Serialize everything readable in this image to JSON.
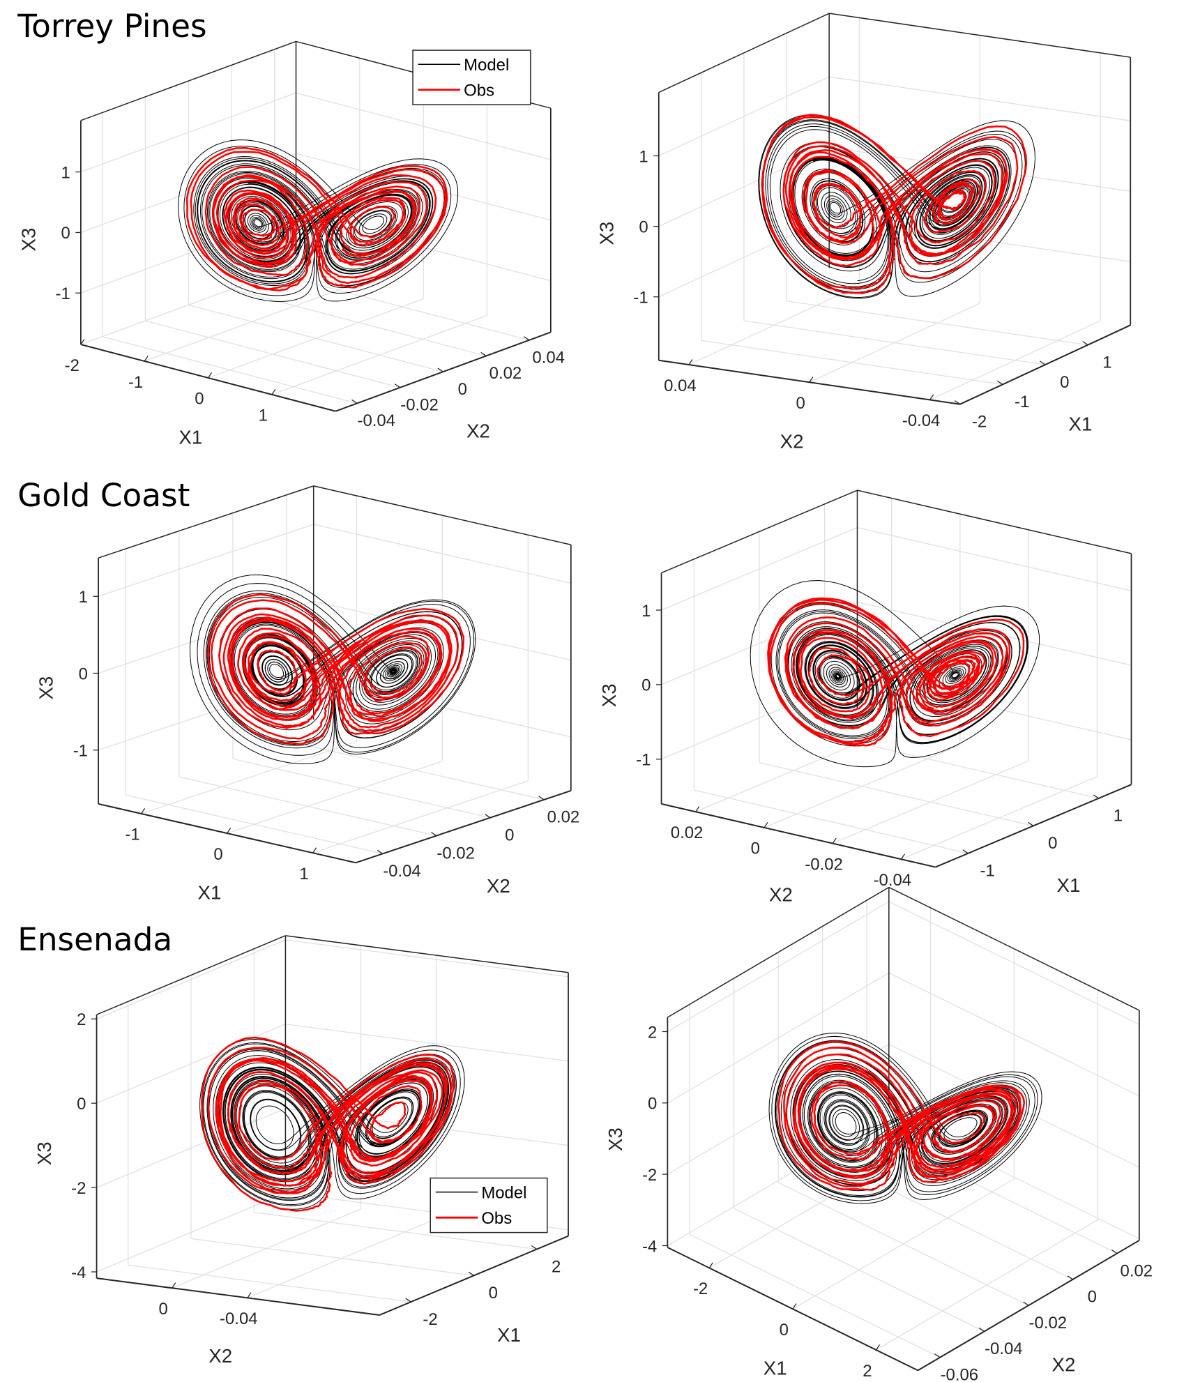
{
  "figure": {
    "sections": [
      {
        "title": "Torrey Pines"
      },
      {
        "title": "Gold Coast"
      },
      {
        "title": "Ensenada"
      }
    ],
    "legend": {
      "model_label": "Model",
      "obs_label": "Obs"
    },
    "colors": {
      "model": "#000000",
      "obs": "#ff0000",
      "grid": "#e0e0e0",
      "axis": "#262626"
    }
  },
  "chart_data": [
    {
      "type": "line",
      "projection": "3d",
      "section": "Torrey Pines",
      "legend": "top-right",
      "grid": true,
      "floor_axis_1": {
        "label": "X1",
        "range": [
          -2,
          2
        ],
        "ticks": [
          -2,
          -1,
          0,
          1
        ],
        "tick_labels": [
          "-2",
          "-1",
          "0",
          "1"
        ]
      },
      "floor_axis_2": {
        "label": "X2",
        "range": [
          -0.05,
          0.05
        ],
        "ticks": [
          -0.04,
          -0.02,
          0,
          0.02,
          0.04
        ],
        "tick_labels": [
          "-0.04",
          "-0.02",
          "0",
          "0.02",
          "0.04"
        ]
      },
      "zaxis": {
        "label": "X3",
        "range": [
          -1.85,
          1.85
        ],
        "ticks": [
          -1,
          0,
          1
        ],
        "tick_labels": [
          "-1",
          "0",
          "1"
        ]
      },
      "series": [
        {
          "name": "Model",
          "color": "#000000"
        },
        {
          "name": "Obs",
          "color": "#ff0000"
        }
      ]
    },
    {
      "type": "line",
      "projection": "3d",
      "section": "Torrey Pines",
      "grid": true,
      "floor_axis_1": {
        "label": "X2",
        "range": [
          0.05,
          -0.05
        ],
        "ticks": [
          0.04,
          0,
          -0.04
        ],
        "tick_labels": [
          "0.04",
          "0",
          "-0.04"
        ]
      },
      "floor_axis_2": {
        "label": "X1",
        "range": [
          -2,
          2
        ],
        "ticks": [
          -2,
          -1,
          0,
          1
        ],
        "tick_labels": [
          "-2",
          "-1",
          "0",
          "1"
        ]
      },
      "zaxis": {
        "label": "X3",
        "range": [
          -1.9,
          1.9
        ],
        "ticks": [
          -1,
          0,
          1
        ],
        "tick_labels": [
          "-1",
          "0",
          "1"
        ]
      },
      "series": [
        {
          "name": "Model",
          "color": "#000000"
        },
        {
          "name": "Obs",
          "color": "#ff0000"
        }
      ]
    },
    {
      "type": "line",
      "projection": "3d",
      "section": "Gold Coast",
      "grid": true,
      "floor_axis_1": {
        "label": "X1",
        "range": [
          -1.5,
          1.5
        ],
        "ticks": [
          -1,
          0,
          1
        ],
        "tick_labels": [
          "-1",
          "0",
          "1"
        ]
      },
      "floor_axis_2": {
        "label": "X2",
        "range": [
          -0.05,
          0.03
        ],
        "ticks": [
          -0.04,
          -0.02,
          0,
          0.02
        ],
        "tick_labels": [
          "-0.04",
          "-0.02",
          "0",
          "0.02"
        ]
      },
      "zaxis": {
        "label": "X3",
        "range": [
          -1.7,
          1.5
        ],
        "ticks": [
          -1,
          0,
          1
        ],
        "tick_labels": [
          "-1",
          "0",
          "1"
        ]
      },
      "series": [
        {
          "name": "Model",
          "color": "#000000"
        },
        {
          "name": "Obs",
          "color": "#ff0000"
        }
      ]
    },
    {
      "type": "line",
      "projection": "3d",
      "section": "Gold Coast",
      "grid": true,
      "floor_axis_1": {
        "label": "X2",
        "range": [
          0.03,
          -0.05
        ],
        "ticks": [
          0.02,
          0,
          -0.02,
          -0.04
        ],
        "tick_labels": [
          "0.02",
          "0",
          "-0.02",
          "-0.04"
        ]
      },
      "floor_axis_2": {
        "label": "X1",
        "range": [
          -1.5,
          1.5
        ],
        "ticks": [
          -1,
          0,
          1
        ],
        "tick_labels": [
          "-1",
          "0",
          "1"
        ]
      },
      "zaxis": {
        "label": "X3",
        "range": [
          -1.6,
          1.5
        ],
        "ticks": [
          -1,
          0,
          1
        ],
        "tick_labels": [
          "-1",
          "0",
          "1"
        ]
      },
      "series": [
        {
          "name": "Model",
          "color": "#000000"
        },
        {
          "name": "Obs",
          "color": "#ff0000"
        }
      ]
    },
    {
      "type": "line",
      "projection": "3d",
      "section": "Ensenada",
      "legend": "bottom-right",
      "grid": true,
      "floor_axis_1": {
        "label": "X2",
        "range": [
          0.04,
          -0.11
        ],
        "ticks": [
          0,
          -0.04
        ],
        "tick_labels": [
          "0",
          "-0.04"
        ]
      },
      "floor_axis_2": {
        "label": "X1",
        "range": [
          -3,
          3
        ],
        "ticks": [
          -2,
          0,
          2
        ],
        "tick_labels": [
          "-2",
          "0",
          "2"
        ]
      },
      "zaxis": {
        "label": "X3",
        "range": [
          -4.15,
          2.1
        ],
        "ticks": [
          -4,
          -2,
          0,
          2
        ],
        "tick_labels": [
          "-4",
          "-2",
          "0",
          "2"
        ]
      },
      "series": [
        {
          "name": "Model",
          "color": "#000000"
        },
        {
          "name": "Obs",
          "color": "#ff0000"
        }
      ]
    },
    {
      "type": "line",
      "projection": "3d",
      "section": "Ensenada",
      "grid": true,
      "floor_axis_1": {
        "label": "X1",
        "range": [
          -3,
          3
        ],
        "ticks": [
          -2,
          0,
          2
        ],
        "tick_labels": [
          "-2",
          "0",
          "2"
        ]
      },
      "floor_axis_2": {
        "label": "X2",
        "range": [
          -0.07,
          0.03
        ],
        "ticks": [
          -0.06,
          -0.04,
          -0.02,
          0,
          0.02
        ],
        "tick_labels": [
          "-0.06",
          "-0.04",
          "-0.02",
          "0",
          "0.02"
        ]
      },
      "zaxis": {
        "label": "X3",
        "range": [
          -4.05,
          2.4
        ],
        "ticks": [
          -4,
          -2,
          0,
          2
        ],
        "tick_labels": [
          "-4",
          "-2",
          "0",
          "2"
        ]
      },
      "series": [
        {
          "name": "Model",
          "color": "#000000"
        },
        {
          "name": "Obs",
          "color": "#ff0000"
        }
      ]
    }
  ]
}
